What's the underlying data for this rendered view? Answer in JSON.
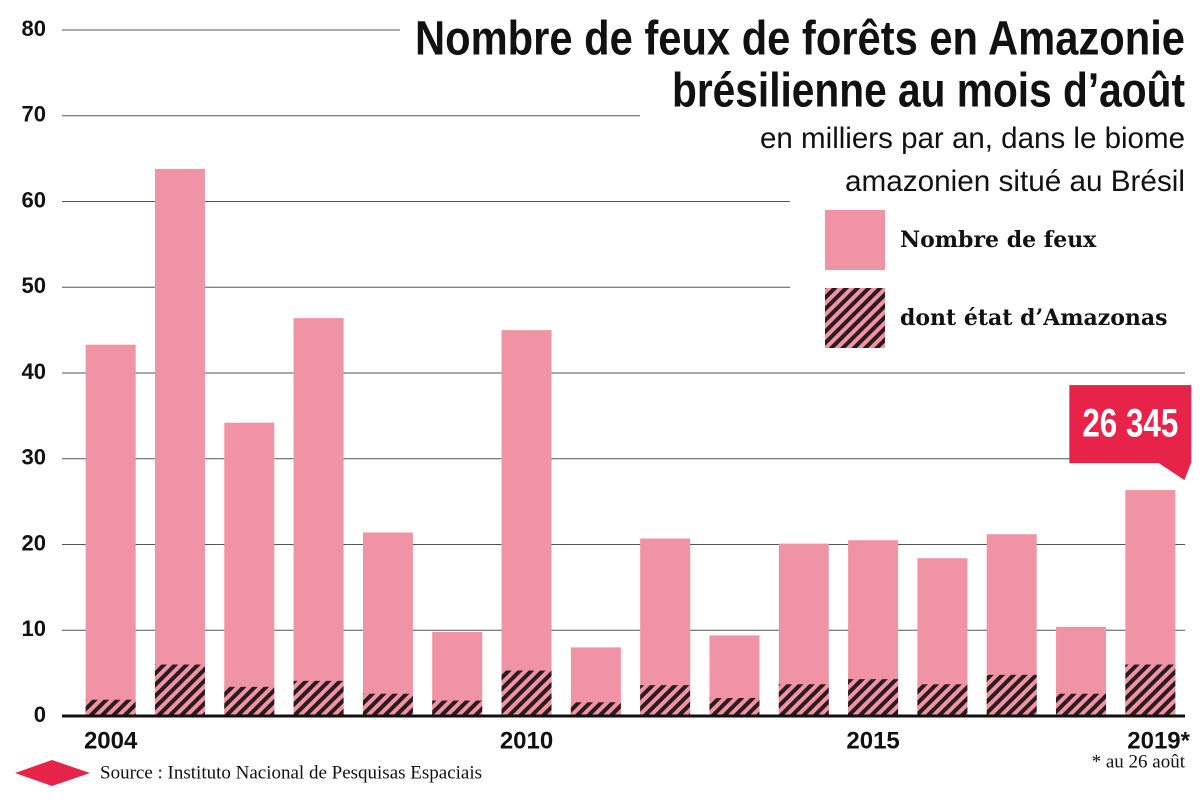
{
  "chart_data": {
    "type": "bar",
    "overlap": true,
    "title": [
      "Nombre de feux de forêts en Amazonie",
      "brésilienne au mois d’août"
    ],
    "subtitle": [
      "en milliers par an, dans le biome",
      "amazonien situé au Brésil"
    ],
    "categories": [
      "2004",
      null,
      null,
      null,
      null,
      null,
      "2010",
      null,
      null,
      null,
      null,
      "2015",
      null,
      null,
      null,
      "2019*"
    ],
    "series": [
      {
        "name": "Nombre de feux",
        "color": "#f093a4",
        "values": [
          43.3,
          63.8,
          34.2,
          46.4,
          21.4,
          9.8,
          45.0,
          8.0,
          20.7,
          9.4,
          20.1,
          20.5,
          18.4,
          21.2,
          10.4,
          26.345
        ],
        "value_labels": [
          null,
          null,
          null,
          null,
          null,
          null,
          null,
          null,
          null,
          null,
          null,
          null,
          null,
          null,
          null,
          "26 345"
        ],
        "label_color": "#e8234a"
      },
      {
        "name": "dont état d’Amazonas",
        "color": "#2b1a1e",
        "hatch": true,
        "values": [
          1.9,
          6.0,
          3.4,
          4.1,
          2.6,
          1.8,
          5.3,
          1.6,
          3.6,
          2.1,
          3.7,
          4.3,
          3.7,
          4.8,
          2.6,
          6.0
        ]
      }
    ],
    "ylim": [
      0,
      80
    ],
    "yticks": [
      0,
      10,
      20,
      30,
      40,
      50,
      60,
      70,
      80
    ],
    "grid": true,
    "footnote": "* au 26 août",
    "source": "Source : Instituto Nacional de Pesquisas Espaciais"
  }
}
